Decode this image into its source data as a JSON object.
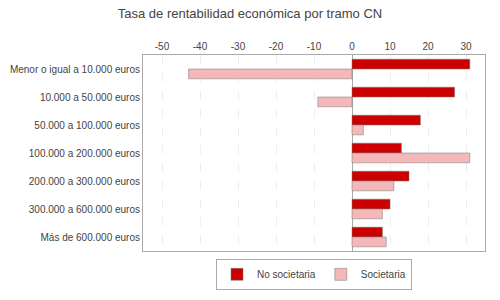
{
  "chart_data": {
    "type": "bar",
    "orientation": "horizontal",
    "title": "Tasa de rentabilidad económica por tramo CN",
    "categories": [
      "Menor o igual a 10.000 euros",
      "10.000 a 50.000 euros",
      "50.000 a 100.000 euros",
      "100.000 a 200.000 euros",
      "200.000 a 300.000 euros",
      "300.000 a 600.000 euros",
      "Más de 600.000 euros"
    ],
    "series": [
      {
        "name": "No societaria",
        "color": "#cc0000",
        "values": [
          31,
          27,
          18,
          13,
          15,
          10,
          8
        ]
      },
      {
        "name": "Societaria",
        "color": "#f4b8b8",
        "values": [
          -43,
          -9,
          3,
          31,
          11,
          8,
          9
        ]
      }
    ],
    "xlim": [
      -55,
      35
    ],
    "xticks": [
      -50,
      -40,
      -30,
      -20,
      -10,
      0,
      10,
      20,
      30
    ],
    "grid": true,
    "legend": "bottom"
  }
}
